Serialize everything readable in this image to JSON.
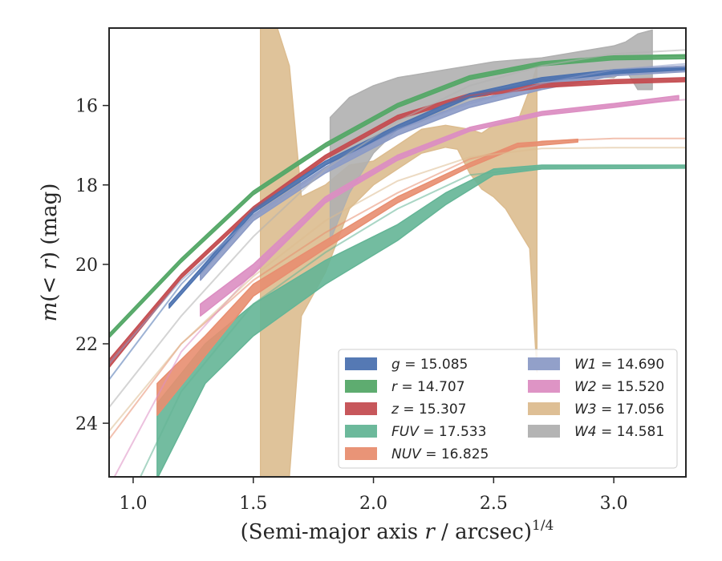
{
  "chart_data": {
    "type": "line",
    "xlabel": "(Semi-major axis r / arcsec)^1/4",
    "ylabel": "m(< r) (mag)",
    "xlim": [
      0.9,
      3.3
    ],
    "ylim": [
      25.35,
      14.05
    ],
    "y_inverted": true,
    "x_ticks": [
      1.0,
      1.5,
      2.0,
      2.5,
      3.0
    ],
    "x_tick_labels": [
      "1.0",
      "1.5",
      "2.0",
      "2.5",
      "3.0"
    ],
    "y_ticks": [
      16,
      18,
      20,
      22,
      24
    ],
    "y_tick_labels": [
      "16",
      "18",
      "20",
      "22",
      "24"
    ],
    "grid": false,
    "legend_position": "lower-right",
    "legend_columns": 2,
    "series": [
      {
        "name": "g = 15.085",
        "label_italic": "g",
        "label_value": "= 15.085",
        "color": "#4c72b0",
        "model": [
          [
            0.9,
            22.9
          ],
          [
            1.2,
            20.5
          ],
          [
            1.5,
            18.7
          ],
          [
            1.8,
            17.5
          ],
          [
            2.1,
            16.6
          ],
          [
            2.4,
            15.8
          ],
          [
            2.7,
            15.35
          ],
          [
            3.0,
            15.15
          ],
          [
            3.3,
            15.08
          ]
        ],
        "band": [
          [
            1.15,
            21.0,
            21.1
          ],
          [
            1.5,
            18.6,
            18.7
          ],
          [
            1.8,
            17.4,
            17.5
          ],
          [
            2.1,
            16.5,
            16.6
          ],
          [
            2.4,
            15.7,
            15.8
          ],
          [
            2.7,
            15.3,
            15.4
          ],
          [
            3.0,
            15.1,
            15.2
          ],
          [
            3.3,
            15.05,
            15.1
          ]
        ]
      },
      {
        "name": "r = 14.707",
        "label_italic": "r",
        "label_value": "= 14.707",
        "color": "#55a868",
        "model": [
          [
            0.9,
            21.8
          ],
          [
            1.2,
            19.9
          ],
          [
            1.5,
            18.2
          ],
          [
            1.8,
            17.0
          ],
          [
            2.1,
            16.0
          ],
          [
            2.4,
            15.3
          ],
          [
            2.7,
            14.95
          ],
          [
            3.0,
            14.8
          ],
          [
            3.3,
            14.75
          ]
        ],
        "band": [
          [
            0.9,
            21.75,
            21.85
          ],
          [
            1.2,
            19.85,
            19.95
          ],
          [
            1.5,
            18.15,
            18.25
          ],
          [
            1.8,
            16.95,
            17.05
          ],
          [
            2.1,
            15.95,
            16.05
          ],
          [
            2.4,
            15.25,
            15.35
          ],
          [
            2.7,
            14.9,
            15.0
          ],
          [
            3.0,
            14.75,
            14.85
          ],
          [
            3.3,
            14.72,
            14.82
          ]
        ]
      },
      {
        "name": "z = 15.307",
        "label_italic": "z",
        "label_value": "= 15.307",
        "color": "#c44e52",
        "model": [
          [
            0.9,
            22.5
          ],
          [
            1.2,
            20.3
          ],
          [
            1.5,
            18.6
          ],
          [
            1.8,
            17.3
          ],
          [
            2.1,
            16.3
          ],
          [
            2.4,
            15.75
          ],
          [
            2.7,
            15.5
          ],
          [
            3.0,
            15.4
          ],
          [
            3.3,
            15.35
          ]
        ],
        "band": [
          [
            0.9,
            22.4,
            22.6
          ],
          [
            1.2,
            20.25,
            20.35
          ],
          [
            1.5,
            18.55,
            18.65
          ],
          [
            1.8,
            17.25,
            17.35
          ],
          [
            2.1,
            16.25,
            16.35
          ],
          [
            2.4,
            15.7,
            15.8
          ],
          [
            2.7,
            15.45,
            15.55
          ],
          [
            3.0,
            15.35,
            15.45
          ],
          [
            3.3,
            15.3,
            15.4
          ]
        ]
      },
      {
        "name": "FUV = 17.533",
        "label_italic": "FUV",
        "label_value": "= 17.533",
        "color": "#64b596",
        "model": [
          [
            0.9,
            27.0
          ],
          [
            1.2,
            23.2
          ],
          [
            1.5,
            21.0
          ],
          [
            1.8,
            19.7
          ],
          [
            2.1,
            18.6
          ],
          [
            2.4,
            17.75
          ],
          [
            2.7,
            17.55
          ],
          [
            3.0,
            17.53
          ],
          [
            3.3,
            17.53
          ]
        ],
        "band": [
          [
            1.1,
            23.5,
            25.4
          ],
          [
            1.3,
            22.0,
            23.0
          ],
          [
            1.5,
            21.0,
            21.8
          ],
          [
            1.8,
            19.9,
            20.5
          ],
          [
            2.1,
            19.0,
            19.4
          ],
          [
            2.3,
            18.2,
            18.5
          ],
          [
            2.5,
            17.6,
            17.75
          ],
          [
            2.7,
            17.5,
            17.6
          ],
          [
            3.3,
            17.5,
            17.58
          ]
        ]
      },
      {
        "name": "NUV = 16.825",
        "label_italic": "NUV",
        "label_value": "= 16.825",
        "color": "#e88e70",
        "model": [
          [
            0.9,
            24.4
          ],
          [
            1.2,
            22.0
          ],
          [
            1.5,
            20.4
          ],
          [
            1.8,
            19.2
          ],
          [
            2.1,
            18.2
          ],
          [
            2.4,
            17.35
          ],
          [
            2.7,
            16.9
          ],
          [
            3.0,
            16.83
          ],
          [
            3.3,
            16.83
          ]
        ],
        "band": [
          [
            1.1,
            23.0,
            23.8
          ],
          [
            1.3,
            21.8,
            22.3
          ],
          [
            1.5,
            20.5,
            20.8
          ],
          [
            1.8,
            19.4,
            19.6
          ],
          [
            2.1,
            18.3,
            18.45
          ],
          [
            2.4,
            17.45,
            17.55
          ],
          [
            2.6,
            16.95,
            17.05
          ],
          [
            2.85,
            16.85,
            16.92
          ]
        ]
      },
      {
        "name": "W1 = 14.690",
        "label_italic": "W1",
        "label_value": "= 14.690",
        "color": "#8c9bc6",
        "model": [
          [
            0.9,
            22.5
          ],
          [
            1.2,
            20.4
          ],
          [
            1.5,
            18.8
          ],
          [
            1.8,
            17.6
          ],
          [
            2.1,
            16.6
          ],
          [
            2.4,
            15.95
          ],
          [
            2.7,
            15.45
          ],
          [
            3.0,
            15.1
          ],
          [
            3.3,
            14.95
          ]
        ],
        "band": [
          [
            1.28,
            20.25,
            20.4
          ],
          [
            1.5,
            18.75,
            18.9
          ],
          [
            1.8,
            17.55,
            17.7
          ],
          [
            2.1,
            16.6,
            16.75
          ],
          [
            2.4,
            15.9,
            16.05
          ],
          [
            2.7,
            15.45,
            15.6
          ],
          [
            3.0,
            15.1,
            15.25
          ],
          [
            3.3,
            15.0,
            15.15
          ]
        ]
      },
      {
        "name": "W2 = 15.520",
        "label_italic": "W2",
        "label_value": "= 15.520",
        "color": "#dc8ec2",
        "model": [
          [
            0.9,
            25.6
          ],
          [
            1.2,
            22.2
          ],
          [
            1.5,
            20.2
          ],
          [
            1.8,
            18.4
          ],
          [
            2.1,
            17.3
          ],
          [
            2.4,
            16.6
          ],
          [
            2.7,
            16.2
          ],
          [
            3.0,
            16.0
          ],
          [
            3.3,
            15.85
          ]
        ],
        "band": [
          [
            1.28,
            21.0,
            21.3
          ],
          [
            1.5,
            20.0,
            20.25
          ],
          [
            1.8,
            18.3,
            18.45
          ],
          [
            2.1,
            17.25,
            17.38
          ],
          [
            2.4,
            16.55,
            16.65
          ],
          [
            2.7,
            16.15,
            16.25
          ],
          [
            3.0,
            15.95,
            16.05
          ],
          [
            3.27,
            15.75,
            15.85
          ]
        ]
      },
      {
        "name": "W3 = 17.056",
        "label_italic": "W3",
        "label_value": "= 17.056",
        "color": "#dcbc8f",
        "model": [
          [
            0.9,
            24.2
          ],
          [
            1.2,
            22.0
          ],
          [
            1.5,
            20.3
          ],
          [
            1.8,
            18.9
          ],
          [
            2.1,
            17.9
          ],
          [
            2.4,
            17.3
          ],
          [
            2.7,
            17.08
          ],
          [
            3.0,
            17.06
          ],
          [
            3.3,
            17.06
          ]
        ],
        "band": [
          [
            1.53,
            14.05,
            25.35
          ],
          [
            1.6,
            14.05,
            25.35
          ],
          [
            1.65,
            15.0,
            25.35
          ],
          [
            1.7,
            18.3,
            21.3
          ],
          [
            1.8,
            18.0,
            20.2
          ],
          [
            1.9,
            17.5,
            18.6
          ],
          [
            2.0,
            17.4,
            18.0
          ],
          [
            2.1,
            17.0,
            17.6
          ],
          [
            2.2,
            16.6,
            17.2
          ],
          [
            2.3,
            16.5,
            17.05
          ],
          [
            2.35,
            16.55,
            17.1
          ],
          [
            2.4,
            16.6,
            17.7
          ],
          [
            2.45,
            16.7,
            18.1
          ],
          [
            2.5,
            16.5,
            18.3
          ],
          [
            2.55,
            16.4,
            18.6
          ],
          [
            2.6,
            16.4,
            19.1
          ],
          [
            2.65,
            15.6,
            19.6
          ],
          [
            2.68,
            15.0,
            22.7
          ]
        ]
      },
      {
        "name": "W4 = 14.581",
        "label_italic": "W4",
        "label_value": "= 14.581",
        "color": "#b0b0b0",
        "model": [
          [
            0.9,
            23.6
          ],
          [
            1.2,
            21.3
          ],
          [
            1.5,
            19.3
          ],
          [
            1.8,
            17.6
          ],
          [
            2.1,
            16.4
          ],
          [
            2.4,
            15.5
          ],
          [
            2.7,
            15.0
          ],
          [
            3.0,
            14.7
          ],
          [
            3.3,
            14.6
          ]
        ],
        "band": [
          [
            1.82,
            16.3,
            19.4
          ],
          [
            1.9,
            15.8,
            18.2
          ],
          [
            2.0,
            15.5,
            17.2
          ],
          [
            2.1,
            15.3,
            16.6
          ],
          [
            2.2,
            15.2,
            16.4
          ],
          [
            2.3,
            15.1,
            16.1
          ],
          [
            2.4,
            15.0,
            15.9
          ],
          [
            2.5,
            14.9,
            15.7
          ],
          [
            2.6,
            14.85,
            15.6
          ],
          [
            2.7,
            14.8,
            15.5
          ],
          [
            2.8,
            14.7,
            15.5
          ],
          [
            2.9,
            14.6,
            15.3
          ],
          [
            3.0,
            14.5,
            15.3
          ],
          [
            3.05,
            14.4,
            15.1
          ],
          [
            3.1,
            14.2,
            15.6
          ],
          [
            3.16,
            14.1,
            15.6
          ]
        ]
      }
    ]
  }
}
